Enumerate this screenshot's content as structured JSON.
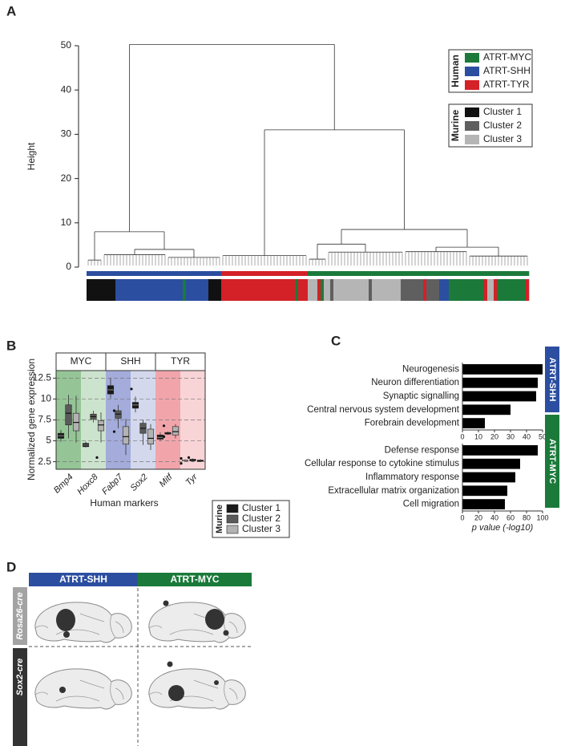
{
  "chart_data": [
    {
      "type": "dendrogram",
      "panel": "A",
      "ylabel": "Height",
      "ylim": [
        0,
        50
      ],
      "yticks": [
        0,
        10,
        20,
        30,
        40,
        50
      ],
      "tree": {
        "height": 50.3,
        "children": [
          {
            "height": 8,
            "children": [
              {
                "height": 1.6,
                "n": 5
              },
              {
                "height": 4,
                "children": [
                  {
                    "height": 2.8,
                    "n": 20
                  },
                  {
                    "height": 2.2,
                    "n": 17
                  }
                ]
              }
            ]
          },
          {
            "height": 31,
            "children": [
              {
                "height": 2.6,
                "n": 27
              },
              {
                "height": 8.5,
                "children": [
                  {
                    "height": 5.2,
                    "children": [
                      {
                        "height": 1.8,
                        "n": 6
                      },
                      {
                        "height": 3.4,
                        "n": 24
                      }
                    ]
                  },
                  {
                    "height": 4.5,
                    "children": [
                      {
                        "height": 3.5,
                        "n": 20
                      },
                      {
                        "height": 2.5,
                        "n": 19
                      }
                    ]
                  }
                ]
              }
            ]
          }
        ]
      },
      "group_bar": [
        {
          "color": "#2c4ea0",
          "n": 42
        },
        {
          "color": "#d42027",
          "n": 27
        },
        {
          "color": "#1b7a3a",
          "n": 69
        }
      ],
      "sample_bar": [
        {
          "color": "#111111",
          "n": 9
        },
        {
          "color": "#2c4ea0",
          "n": 21
        },
        {
          "color": "#1b7a3a",
          "n": 1
        },
        {
          "color": "#2c4ea0",
          "n": 7
        },
        {
          "color": "#111111",
          "n": 4
        },
        {
          "color": "#d42027",
          "n": 23
        },
        {
          "color": "#1b7a3a",
          "n": 1
        },
        {
          "color": "#d42027",
          "n": 3
        },
        {
          "color": "#b5b5b5",
          "n": 3
        },
        {
          "color": "#d42027",
          "n": 1
        },
        {
          "color": "#1b7a3a",
          "n": 1
        },
        {
          "color": "#b5b5b5",
          "n": 2
        },
        {
          "color": "#5f5f5f",
          "n": 1
        },
        {
          "color": "#b5b5b5",
          "n": 11
        },
        {
          "color": "#5f5f5f",
          "n": 1
        },
        {
          "color": "#b5b5b5",
          "n": 9
        },
        {
          "color": "#5f5f5f",
          "n": 7
        },
        {
          "color": "#d42027",
          "n": 1
        },
        {
          "color": "#5f5f5f",
          "n": 4
        },
        {
          "color": "#2c4ea0",
          "n": 3
        },
        {
          "color": "#1b7a3a",
          "n": 11
        },
        {
          "color": "#d42027",
          "n": 1
        },
        {
          "color": "#b5b5b5",
          "n": 2
        },
        {
          "color": "#d42027",
          "n": 1
        },
        {
          "color": "#1b7a3a",
          "n": 9
        },
        {
          "color": "#d42027",
          "n": 1
        }
      ],
      "legend": [
        {
          "title": "Human",
          "entries": [
            {
              "name": "ATRT-MYC",
              "color": "#1b7a3a"
            },
            {
              "name": "ATRT-SHH",
              "color": "#2c4ea0"
            },
            {
              "name": "ATRT-TYR",
              "color": "#d42027"
            }
          ]
        },
        {
          "title": "Murine",
          "entries": [
            {
              "name": "Cluster 1",
              "color": "#111111"
            },
            {
              "name": "Cluster 2",
              "color": "#5f5f5f"
            },
            {
              "name": "Cluster 3",
              "color": "#b5b5b5"
            }
          ]
        }
      ]
    },
    {
      "type": "boxplot",
      "panel": "B",
      "ylabel": "Normalized gene expression",
      "xlabel": "Human markers",
      "ylim": [
        1.6,
        13.4
      ],
      "yticks": [
        2.5,
        5,
        7.5,
        10,
        12.5
      ],
      "grid": true,
      "facets": [
        {
          "label": "MYC",
          "color": "#8fc290",
          "genes": [
            "Bmp4",
            "Hoxc8"
          ]
        },
        {
          "label": "SHH",
          "color": "#9ea8d8",
          "genes": [
            "Fabp7",
            "Sox2"
          ]
        },
        {
          "label": "TYR",
          "color": "#f0a0a6",
          "genes": [
            "Mitf",
            "Tyr"
          ]
        }
      ],
      "legend_title": "Murine",
      "series": [
        {
          "name": "Cluster 1",
          "color": "#1a1a1a",
          "whisker_low": [
            4.9,
            4.2,
            10.1,
            8.4,
            5.0,
            2.5
          ],
          "q1": [
            5.3,
            4.3,
            10.6,
            8.9,
            5.2,
            2.6
          ],
          "median": [
            5.6,
            4.5,
            11.1,
            9.3,
            5.4,
            2.65
          ],
          "q3": [
            5.9,
            4.7,
            11.6,
            9.6,
            5.7,
            2.7
          ],
          "whisker_high": [
            6.3,
            4.9,
            12.5,
            10.3,
            6.0,
            2.8
          ],
          "outliers": [
            [],
            [],
            [],
            [
              11.2
            ],
            [],
            [
              2.9,
              2.3
            ]
          ]
        },
        {
          "name": "Cluster 2",
          "color": "#5a5a5a",
          "whisker_low": [
            5.3,
            7.2,
            6.5,
            4.5,
            5.7,
            2.5
          ],
          "q1": [
            6.9,
            7.6,
            7.7,
            5.9,
            5.8,
            2.6
          ],
          "median": [
            8.3,
            7.9,
            8.2,
            6.5,
            5.9,
            2.7
          ],
          "q3": [
            9.3,
            8.2,
            8.6,
            7.1,
            6.0,
            2.8
          ],
          "whisker_high": [
            10.5,
            8.6,
            9.3,
            7.5,
            6.1,
            2.9
          ],
          "outliers": [
            [],
            [],
            [
              8.6,
              6.1
            ],
            [],
            [
              6.8,
              5.5
            ],
            [
              3.0
            ]
          ]
        },
        {
          "name": "Cluster 3",
          "color": "#b3b3b3",
          "whisker_low": [
            4.8,
            4.8,
            3.3,
            3.9,
            5.3,
            2.5
          ],
          "q1": [
            6.2,
            6.2,
            4.6,
            4.6,
            5.7,
            2.55
          ],
          "median": [
            7.2,
            6.9,
            5.5,
            5.3,
            6.1,
            2.6
          ],
          "q3": [
            8.3,
            7.4,
            6.7,
            6.4,
            6.7,
            2.7
          ],
          "whisker_high": [
            10.4,
            8.4,
            7.6,
            7.0,
            7.0,
            2.8
          ],
          "outliers": [
            [],
            [
              3.0
            ],
            [],
            [],
            [],
            []
          ]
        }
      ]
    },
    {
      "type": "hbar",
      "panel": "C",
      "side_label": "ATRT-SHH",
      "side_color": "#2c4ea0",
      "color": "#000000",
      "categories": [
        "Neurogenesis",
        "Neuron differentiation",
        "Synaptic signalling",
        "Central nervous system development",
        "Forebrain development"
      ],
      "values": [
        50,
        47,
        46,
        30,
        14
      ],
      "xlim": [
        0,
        50
      ],
      "xticks": [
        0,
        10,
        20,
        30,
        40,
        50
      ]
    },
    {
      "type": "hbar",
      "side_label": "ATRT-MYC",
      "side_color": "#1b7a3a",
      "color": "#000000",
      "categories": [
        "Defense response",
        "Cellular response to cytokine stimulus",
        "Inflammatory response",
        "Extracellular matrix organization",
        "Cell migration"
      ],
      "values": [
        94,
        72,
        66,
        56,
        53
      ],
      "xlim": [
        0,
        100
      ],
      "xticks": [
        0,
        20,
        40,
        60,
        80,
        100
      ],
      "xlabel": "p value (-log10)"
    }
  ],
  "diagram": {
    "panel": "D",
    "columns": [
      "ATRT-SHH",
      "ATRT-MYC"
    ],
    "rows": [
      "Rosa26-cre",
      "Sox2-cre"
    ]
  }
}
